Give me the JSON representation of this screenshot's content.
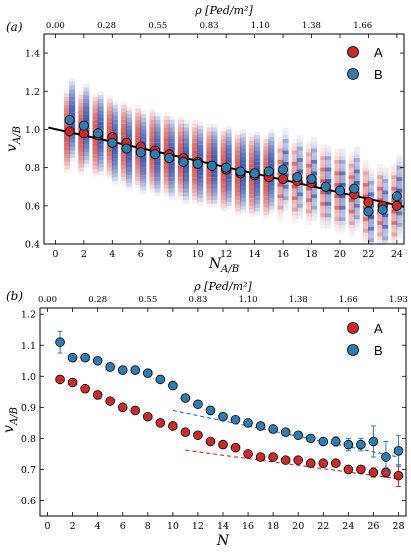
{
  "colors": {
    "A": "#cc2a2a",
    "B": "#2e7cb0",
    "A_band": "#d13a3a",
    "B_band": "#1f3fa8",
    "fit_line": "#000000",
    "A_fit": "#e03030",
    "B_fit": "#2e7cb0"
  },
  "chart_data": [
    {
      "panel_label": "(a)",
      "type": "scatter",
      "xlabel": "N_{A/B}",
      "ylabel": "v_{A/B}",
      "top_xlabel": "ρ [Ped/m²]",
      "xlim": [
        -0.8,
        24.5
      ],
      "ylim": [
        0.4,
        1.5
      ],
      "xticks": [
        0,
        2,
        4,
        6,
        8,
        10,
        12,
        14,
        16,
        18,
        20,
        22,
        24
      ],
      "yticks": [
        0.4,
        0.6,
        0.8,
        1.0,
        1.2,
        1.4
      ],
      "top_ticks": [
        "0.00",
        "0.28",
        "0.55",
        "0.83",
        "1.10",
        "1.38",
        "1.66"
      ],
      "top_tick_x": [
        0,
        3.6,
        7.2,
        10.8,
        14.4,
        18,
        21.6
      ],
      "legend": [
        "A",
        "B"
      ],
      "fit_line": {
        "x": [
          -0.5,
          24.5
        ],
        "y": [
          1.01,
          0.595
        ]
      },
      "series": [
        {
          "name": "A",
          "x": [
            1,
            2,
            3,
            4,
            5,
            6,
            7,
            8,
            9,
            10,
            11,
            12,
            13,
            14,
            15,
            16,
            17,
            18,
            19,
            20,
            21,
            22,
            23,
            24
          ],
          "y": [
            0.99,
            0.98,
            0.97,
            0.96,
            0.93,
            0.91,
            0.89,
            0.87,
            0.85,
            0.83,
            0.81,
            0.79,
            0.77,
            0.76,
            0.75,
            0.74,
            0.73,
            0.72,
            0.7,
            0.68,
            0.66,
            0.62,
            0.6,
            0.6
          ]
        },
        {
          "name": "B",
          "x": [
            1,
            2,
            3,
            4,
            5,
            6,
            7,
            8,
            9,
            10,
            11,
            12,
            13,
            14,
            15,
            16,
            17,
            18,
            19,
            20,
            21,
            22,
            23,
            24
          ],
          "y": [
            1.05,
            1.02,
            0.98,
            0.93,
            0.9,
            0.88,
            0.87,
            0.85,
            0.83,
            0.82,
            0.81,
            0.8,
            0.78,
            0.77,
            0.78,
            0.79,
            0.75,
            0.74,
            0.7,
            0.68,
            0.69,
            0.57,
            0.58,
            0.65
          ]
        }
      ]
    },
    {
      "panel_label": "(b)",
      "type": "scatter",
      "xlabel": "N",
      "ylabel": "v_{A/B}",
      "top_xlabel": "ρ [Ped/m²]",
      "xlim": [
        -0.6,
        28.6
      ],
      "ylim": [
        0.55,
        1.22
      ],
      "xticks": [
        0,
        2,
        4,
        6,
        8,
        10,
        12,
        14,
        16,
        18,
        20,
        22,
        24,
        26,
        28
      ],
      "yticks": [
        0.6,
        0.7,
        0.8,
        0.9,
        1.0,
        1.1,
        1.2
      ],
      "top_ticks": [
        "0.00",
        "0.28",
        "0.55",
        "0.83",
        "1.10",
        "1.38",
        "1.66",
        "1.93"
      ],
      "top_tick_x": [
        0,
        4,
        8,
        12,
        16,
        20,
        24,
        28
      ],
      "legend": [
        "A",
        "B"
      ],
      "fit_A": {
        "x": [
          11,
          28
        ],
        "y": [
          0.762,
          0.67
        ]
      },
      "fit_B": {
        "x": [
          10,
          28
        ],
        "y": [
          0.89,
          0.74
        ]
      },
      "series": [
        {
          "name": "A",
          "x": [
            1,
            2,
            3,
            4,
            5,
            6,
            7,
            8,
            9,
            10,
            11,
            12,
            13,
            14,
            15,
            16,
            17,
            18,
            19,
            20,
            21,
            22,
            23,
            24,
            25,
            26,
            27,
            28
          ],
          "y": [
            0.99,
            0.98,
            0.96,
            0.94,
            0.92,
            0.9,
            0.89,
            0.87,
            0.85,
            0.84,
            0.82,
            0.81,
            0.79,
            0.78,
            0.77,
            0.75,
            0.74,
            0.74,
            0.73,
            0.73,
            0.72,
            0.72,
            0.72,
            0.7,
            0.7,
            0.69,
            0.69,
            0.68
          ],
          "err": [
            0,
            0,
            0,
            0,
            0,
            0,
            0,
            0,
            0,
            0,
            0,
            0,
            0,
            0,
            0,
            0,
            0,
            0,
            0,
            0,
            0,
            0.01,
            0.01,
            0.012,
            0.012,
            0.015,
            0.015,
            0.035
          ]
        },
        {
          "name": "B",
          "x": [
            1,
            2,
            3,
            4,
            5,
            6,
            7,
            8,
            9,
            10,
            11,
            12,
            13,
            14,
            15,
            16,
            17,
            18,
            19,
            20,
            21,
            22,
            23,
            24,
            25,
            26,
            27,
            28
          ],
          "y": [
            1.11,
            1.06,
            1.06,
            1.05,
            1.03,
            1.02,
            1.02,
            1.01,
            0.99,
            0.97,
            0.93,
            0.91,
            0.89,
            0.87,
            0.86,
            0.85,
            0.84,
            0.83,
            0.82,
            0.81,
            0.8,
            0.79,
            0.79,
            0.78,
            0.78,
            0.79,
            0.74,
            0.76
          ],
          "err": [
            0.035,
            0,
            0,
            0,
            0,
            0,
            0,
            0,
            0,
            0,
            0,
            0,
            0,
            0,
            0,
            0,
            0,
            0,
            0.01,
            0.01,
            0.01,
            0.012,
            0.015,
            0.02,
            0.02,
            0.05,
            0.05,
            0.05
          ]
        }
      ]
    }
  ]
}
